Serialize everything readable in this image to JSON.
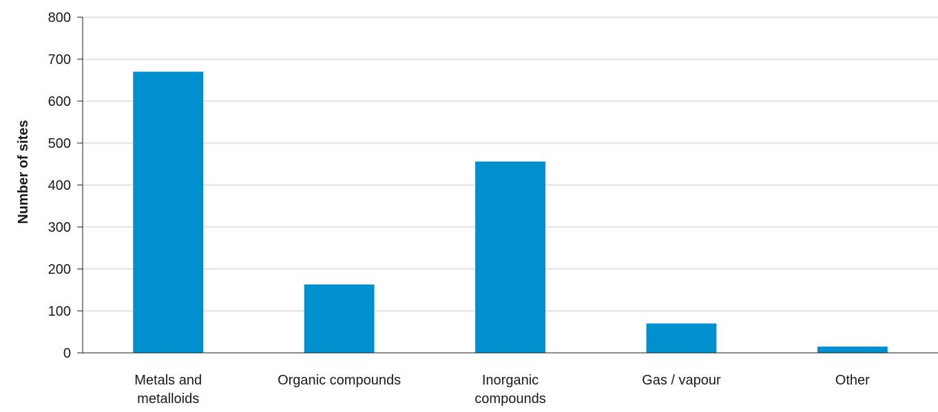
{
  "chart_data": {
    "type": "bar",
    "title": "",
    "xlabel": "",
    "ylabel": "Number of sites",
    "ylim": [
      0,
      800
    ],
    "yticks": [
      0,
      100,
      200,
      300,
      400,
      500,
      600,
      700,
      800
    ],
    "grid": true,
    "legend": "none",
    "categories": [
      [
        "Metals and",
        "metalloids"
      ],
      [
        "Organic compounds"
      ],
      [
        "Inorganic",
        "compounds"
      ],
      [
        "Gas / vapour"
      ],
      [
        "Other"
      ]
    ],
    "values": [
      670,
      163,
      456,
      70,
      15
    ],
    "colors": {
      "bar": "#0090cf",
      "grid": "#c8c8c8",
      "axis": "#1a1a1a"
    }
  }
}
